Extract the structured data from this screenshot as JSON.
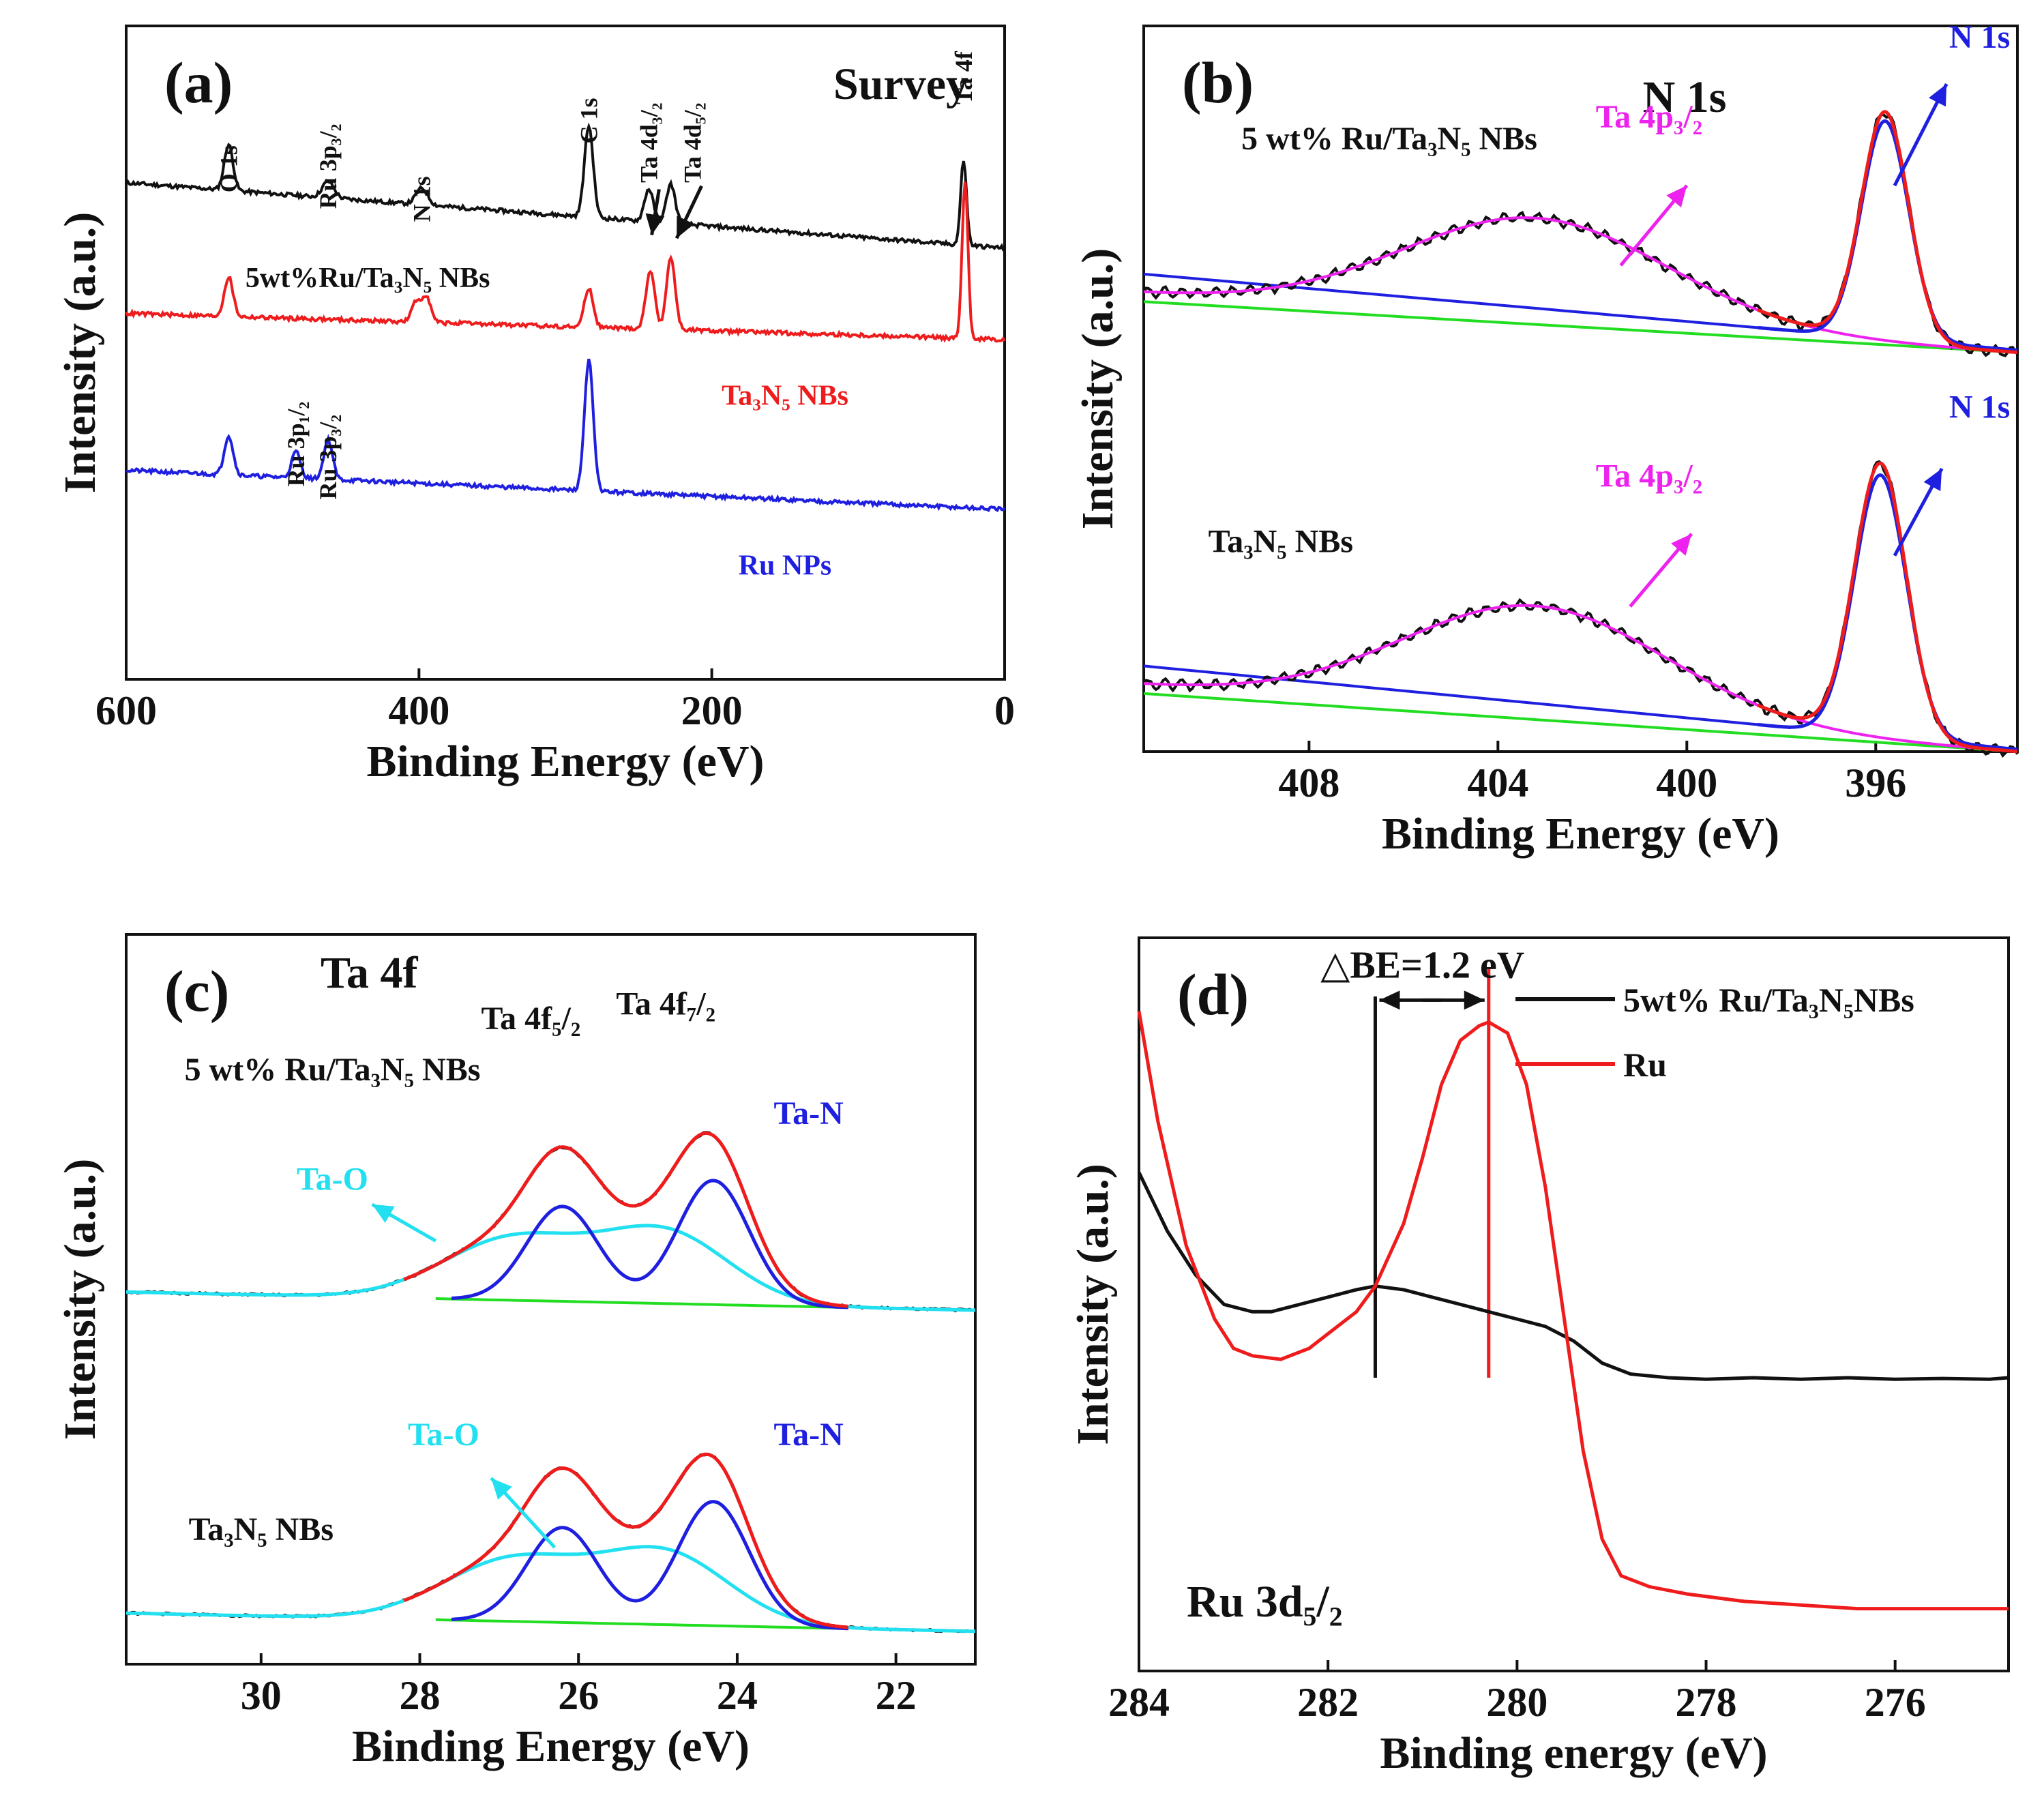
{
  "colors": {
    "black": "#111111",
    "red": "#ee1c1c",
    "blue": "#1f1fe0",
    "magenta": "#ee22ee",
    "green": "#22dd22",
    "cyan": "#22e0f0"
  },
  "chart_data": [
    {
      "id": "a",
      "type": "line",
      "panel_label": "(a)",
      "title": "Survey",
      "xlabel": "Binding Energy (eV)",
      "ylabel": "Intensity (a.u.)",
      "xlim": [
        600,
        0
      ],
      "ylim": [
        0,
        1
      ],
      "xticks": [
        {
          "value": 600,
          "label": "600"
        },
        {
          "value": 400,
          "label": "400"
        },
        {
          "value": 200,
          "label": "200"
        },
        {
          "value": 0,
          "label": "0"
        }
      ],
      "series": [
        {
          "name": "5wt%Ru/Ta3N5 NBs",
          "color": "#111111",
          "base": 0.66,
          "slope": 0.1,
          "peaks": [
            [
              530,
              0.07,
              3
            ],
            [
              462,
              0.025,
              4
            ],
            [
              398,
              0.025,
              4
            ],
            [
              284,
              0.14,
              3
            ],
            [
              243,
              0.05,
              3
            ],
            [
              228,
              0.06,
              3
            ],
            [
              28,
              0.13,
              2
            ]
          ],
          "label": {
            "text": "5wt%Ru/Ta₃N₅ NBs",
            "x": 435,
            "y": 0.6
          },
          "peak_labels": [
            {
              "text": "O 1s",
              "x": 530,
              "y": 0.745
            },
            {
              "text": "Ru 3p₃/₂",
              "x": 462,
              "y": 0.72
            },
            {
              "text": "N 1s",
              "x": 398,
              "y": 0.7
            },
            {
              "text": "C 1s",
              "x": 284,
              "y": 0.82
            },
            {
              "text": "Ta 4d₃/₂",
              "x": 243,
              "y": 0.76
            },
            {
              "text": "Ta 4d₅/₂",
              "x": 213,
              "y": 0.76
            },
            {
              "text": "Ta 4f",
              "x": 28,
              "y": 0.88
            }
          ]
        },
        {
          "name": "Ta3N5 NBs",
          "color": "#ee1c1c",
          "base": 0.52,
          "slope": 0.04,
          "peaks": [
            [
              530,
              0.06,
              3
            ],
            [
              402,
              0.03,
              3
            ],
            [
              395,
              0.04,
              3
            ],
            [
              284,
              0.06,
              3
            ],
            [
              242,
              0.09,
              3
            ],
            [
              228,
              0.11,
              3
            ],
            [
              27,
              0.24,
              2
            ]
          ],
          "label": {
            "text": "Ta₃N₅ NBs",
            "x": 150,
            "y": 0.42
          }
        },
        {
          "name": "Ru NPs",
          "color": "#1f1fe0",
          "base": 0.26,
          "slope": 0.06,
          "peaks": [
            [
              530,
              0.06,
              3
            ],
            [
              484,
              0.04,
              3
            ],
            [
              462,
              0.06,
              3
            ],
            [
              284,
              0.2,
              3
            ]
          ],
          "label": {
            "text": "Ru NPs",
            "x": 150,
            "y": 0.16
          },
          "peak_labels": [
            {
              "text": "Ru 3p₁/₂",
              "x": 484,
              "y": 0.295
            },
            {
              "text": "Ru 3p₃/₂",
              "x": 462,
              "y": 0.275
            }
          ]
        }
      ]
    },
    {
      "id": "b",
      "type": "line",
      "panel_label": "(b)",
      "title": "N 1s",
      "xlabel": "Binding Energy (eV)",
      "ylabel": "Intensity (a.u.)",
      "xlim": [
        411.5,
        393
      ],
      "ylim": [
        0,
        1
      ],
      "xticks": [
        {
          "value": 408,
          "label": "408"
        },
        {
          "value": 404,
          "label": "404"
        },
        {
          "value": 400,
          "label": "400"
        },
        {
          "value": 396,
          "label": "396"
        }
      ],
      "samples": [
        {
          "name": "5 wt% Ru/Ta3N5 NBs",
          "ta4p": {
            "center": 403.2,
            "height": 0.14,
            "sigma": 2.8
          },
          "n1s": {
            "center": 395.8,
            "height": 0.3,
            "sigma": 0.5
          },
          "background": {
            "left": 0.62,
            "right": 0.55
          },
          "labels": [
            {
              "text": "5 wt% Ru/Ta₃N₅ NBs",
              "x": 406.3,
              "y": 0.83,
              "color": "#111111"
            },
            {
              "text": "Ta 4p₃/₂",
              "x": 400.8,
              "y": 0.86,
              "color": "#ee22ee"
            },
            {
              "text": "N 1s",
              "x": 393.8,
              "y": 0.97,
              "color": "#1f1fe0"
            }
          ],
          "arrows": [
            {
              "from": [
                401.4,
                0.67
              ],
              "to": [
                400.0,
                0.78
              ],
              "color": "#ee22ee"
            },
            {
              "from": [
                395.6,
                0.78
              ],
              "to": [
                394.5,
                0.92
              ],
              "color": "#1f1fe0"
            }
          ]
        },
        {
          "name": "Ta3N5 NBs",
          "ta4p": {
            "center": 403.2,
            "height": 0.15,
            "sigma": 2.8
          },
          "n1s": {
            "center": 395.9,
            "height": 0.36,
            "sigma": 0.55
          },
          "background": {
            "left": 0.08,
            "right": 0.0
          },
          "labels": [
            {
              "text": "Ta₃N₅ NBs",
              "x": 408.6,
              "y": 0.275,
              "color": "#111111"
            },
            {
              "text": "Ta 4p₃/₂",
              "x": 400.8,
              "y": 0.365,
              "color": "#ee22ee"
            },
            {
              "text": "N 1s",
              "x": 393.8,
              "y": 0.46,
              "color": "#1f1fe0"
            }
          ],
          "arrows": [
            {
              "from": [
                401.2,
                0.2
              ],
              "to": [
                399.9,
                0.3
              ],
              "color": "#ee22ee"
            },
            {
              "from": [
                395.6,
                0.27
              ],
              "to": [
                394.6,
                0.39
              ],
              "color": "#1f1fe0"
            }
          ]
        }
      ]
    },
    {
      "id": "c",
      "type": "line",
      "panel_label": "(c)",
      "title": "Ta 4f",
      "xlabel": "Binding Energy (eV)",
      "ylabel": "Intensity (a.u.)",
      "xlim": [
        31.7,
        21
      ],
      "ylim": [
        0,
        1
      ],
      "xticks": [
        {
          "value": 30,
          "label": "30"
        },
        {
          "value": 28,
          "label": "28"
        },
        {
          "value": 26,
          "label": "26"
        },
        {
          "value": 24,
          "label": "24"
        },
        {
          "value": 22,
          "label": "22"
        }
      ],
      "peak_labels": [
        {
          "text": "Ta 4f₅/₂",
          "x": 26.6,
          "y": 0.87
        },
        {
          "text": "Ta 4f₇/₂",
          "x": 24.9,
          "y": 0.89
        }
      ],
      "samples": [
        {
          "name": "5 wt% Ru/Ta3N5 NBs",
          "base": 0.51,
          "bg_drop": 0.025,
          "taN": [
            {
              "center": 26.2,
              "height": 0.13,
              "sigma": 0.45
            },
            {
              "center": 24.3,
              "height": 0.17,
              "sigma": 0.45
            }
          ],
          "taO": [
            {
              "center": 26.8,
              "height": 0.085,
              "sigma": 0.9
            },
            {
              "center": 24.9,
              "height": 0.095,
              "sigma": 0.8
            }
          ],
          "labels": [
            {
              "text": "5 wt% Ru/Ta₃N₅ NBs",
              "x": 29.1,
              "y": 0.8,
              "color": "#111111"
            },
            {
              "text": "Ta-N",
              "x": 23.1,
              "y": 0.74,
              "color": "#1f1fe0"
            },
            {
              "text": "Ta-O",
              "x": 29.1,
              "y": 0.65,
              "color": "#22e0f0"
            }
          ],
          "arrows": [
            {
              "from": [
                27.8,
                0.58
              ],
              "to": [
                28.6,
                0.63
              ],
              "color": "#22e0f0"
            }
          ]
        },
        {
          "name": "Ta3N5 NBs",
          "base": 0.07,
          "bg_drop": 0.025,
          "taN": [
            {
              "center": 26.2,
              "height": 0.13,
              "sigma": 0.45
            },
            {
              "center": 24.3,
              "height": 0.17,
              "sigma": 0.45
            }
          ],
          "taO": [
            {
              "center": 26.8,
              "height": 0.085,
              "sigma": 0.9
            },
            {
              "center": 24.9,
              "height": 0.095,
              "sigma": 0.8
            }
          ],
          "labels": [
            {
              "text": "Ta₃N₅ NBs",
              "x": 30.0,
              "y": 0.17,
              "color": "#111111"
            },
            {
              "text": "Ta-O",
              "x": 27.7,
              "y": 0.3,
              "color": "#22e0f0"
            },
            {
              "text": "Ta-N",
              "x": 23.1,
              "y": 0.3,
              "color": "#1f1fe0"
            }
          ],
          "arrows": [
            {
              "from": [
                26.3,
                0.16
              ],
              "to": [
                27.1,
                0.255
              ],
              "color": "#22e0f0"
            }
          ]
        }
      ]
    },
    {
      "id": "d",
      "type": "line",
      "panel_label": "(d)",
      "xlabel": "Binding energy (eV)",
      "ylabel": "Intensity (a.u.)",
      "xlim": [
        284,
        274.8
      ],
      "ylim": [
        0,
        1
      ],
      "xticks": [
        {
          "value": 284,
          "label": "284"
        },
        {
          "value": 282,
          "label": "282"
        },
        {
          "value": 280,
          "label": "280"
        },
        {
          "value": 278,
          "label": "278"
        },
        {
          "value": 276,
          "label": "276"
        }
      ],
      "annotation": "△BE=1.2 eV",
      "inner_label": "Ru 3d₅/₂",
      "delta_be": {
        "from": 281.5,
        "to": 280.3,
        "value": 1.2
      },
      "legend": [
        {
          "name": "5wt% Ru/Ta₃N₅NBs",
          "color": "#111111"
        },
        {
          "name": "Ru",
          "color": "#ee1c1c"
        }
      ],
      "series": [
        {
          "name": "5wt% Ru/Ta3N5NBs",
          "color": "#111111",
          "x": [
            284.0,
            283.7,
            283.4,
            283.1,
            282.8,
            282.6,
            282.3,
            282.0,
            281.7,
            281.5,
            281.2,
            280.9,
            280.6,
            280.3,
            280.0,
            279.7,
            279.4,
            279.1,
            278.8,
            278.4,
            278.0,
            277.5,
            277.0,
            276.5,
            276.0,
            275.5,
            275.0,
            274.8
          ],
          "y": [
            0.68,
            0.6,
            0.54,
            0.5,
            0.49,
            0.49,
            0.5,
            0.51,
            0.52,
            0.525,
            0.52,
            0.51,
            0.5,
            0.49,
            0.48,
            0.47,
            0.45,
            0.42,
            0.405,
            0.4,
            0.398,
            0.4,
            0.398,
            0.4,
            0.398,
            0.399,
            0.398,
            0.4
          ]
        },
        {
          "name": "Ru",
          "color": "#ee1c1c",
          "x": [
            284.0,
            283.8,
            283.5,
            283.2,
            283.0,
            282.8,
            282.5,
            282.2,
            282.0,
            281.7,
            281.5,
            281.2,
            281.0,
            280.8,
            280.6,
            280.4,
            280.3,
            280.1,
            279.9,
            279.7,
            279.5,
            279.3,
            279.1,
            278.9,
            278.6,
            278.2,
            277.6,
            277.0,
            276.4,
            275.8,
            275.0,
            274.8
          ],
          "y": [
            0.9,
            0.75,
            0.58,
            0.48,
            0.44,
            0.43,
            0.425,
            0.44,
            0.46,
            0.49,
            0.525,
            0.61,
            0.7,
            0.8,
            0.86,
            0.88,
            0.885,
            0.87,
            0.8,
            0.66,
            0.48,
            0.3,
            0.18,
            0.13,
            0.115,
            0.105,
            0.095,
            0.09,
            0.085,
            0.085,
            0.085,
            0.085
          ]
        }
      ]
    }
  ]
}
